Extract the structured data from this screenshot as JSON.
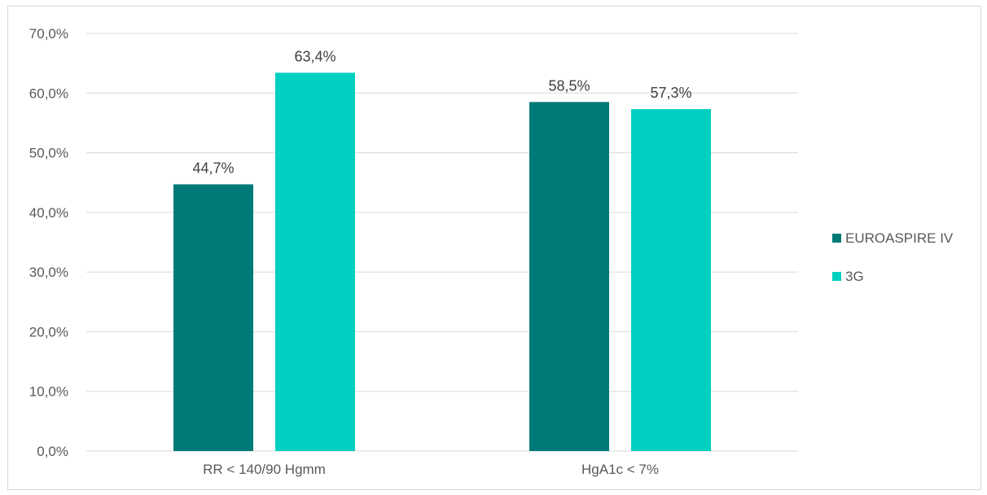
{
  "chart_data": {
    "type": "bar",
    "categories": [
      "RR < 140/90 Hgmm",
      "HgA1c < 7%"
    ],
    "series": [
      {
        "name": "EUROASPIRE IV",
        "values": [
          44.7,
          58.5
        ],
        "labels": [
          "44,7%",
          "58,5%"
        ],
        "color": "#007a78"
      },
      {
        "name": "3G",
        "values": [
          63.4,
          57.3
        ],
        "labels": [
          "63,4%",
          "57,3%"
        ],
        "color": "#00d0c0"
      }
    ],
    "ylim": [
      0,
      70
    ],
    "yticks": [
      0,
      10,
      20,
      30,
      40,
      50,
      60,
      70
    ],
    "ytick_labels": [
      "0,0%",
      "10,0%",
      "20,0%",
      "30,0%",
      "40,0%",
      "50,0%",
      "60,0%",
      "70,0%"
    ],
    "grid": true,
    "legend_position": "right"
  }
}
